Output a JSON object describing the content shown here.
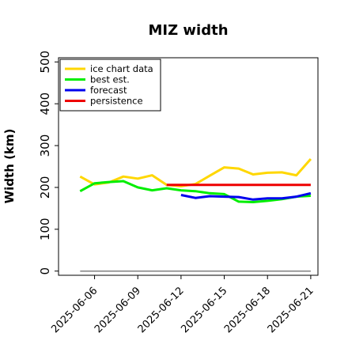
{
  "chart_data": {
    "type": "line",
    "title": "MIZ width",
    "xlabel": "",
    "ylabel": "Width (km)",
    "xlim": [
      "2025-06-03T12:00",
      "2025-06-21T12:00"
    ],
    "ylim": [
      -10,
      510
    ],
    "yticks": [
      0,
      100,
      200,
      300,
      400,
      500
    ],
    "xticks": [
      "2025-06-06",
      "2025-06-09",
      "2025-06-12",
      "2025-06-15",
      "2025-06-18",
      "2025-06-21"
    ],
    "highlight_tick": "2025-06-12",
    "highlight_color": "#228b22",
    "legend_position": "upper left",
    "series": [
      {
        "name": "ice chart data",
        "color": "#ffd700",
        "x": [
          "2025-06-05",
          "2025-06-06",
          "2025-06-07",
          "2025-06-08",
          "2025-06-09",
          "2025-06-10",
          "2025-06-11",
          "2025-06-12",
          "2025-06-13",
          "2025-06-14",
          "2025-06-15",
          "2025-06-16",
          "2025-06-17",
          "2025-06-18",
          "2025-06-19",
          "2025-06-20",
          "2025-06-21"
        ],
        "y": [
          226,
          207,
          212,
          226,
          221,
          229,
          206,
          203,
          208,
          228,
          248,
          245,
          231,
          235,
          236,
          229,
          268
        ]
      },
      {
        "name": "best est.",
        "color": "#00ee00",
        "x": [
          "2025-06-05",
          "2025-06-06",
          "2025-06-07",
          "2025-06-08",
          "2025-06-09",
          "2025-06-10",
          "2025-06-11",
          "2025-06-12",
          "2025-06-13",
          "2025-06-14",
          "2025-06-15",
          "2025-06-16",
          "2025-06-17",
          "2025-06-18",
          "2025-06-19",
          "2025-06-20",
          "2025-06-21"
        ],
        "y": [
          191,
          210,
          213,
          215,
          200,
          193,
          198,
          193,
          191,
          186,
          184,
          166,
          165,
          168,
          172,
          178,
          180
        ]
      },
      {
        "name": "forecast",
        "color": "#0000ee",
        "x": [
          "2025-06-12",
          "2025-06-13",
          "2025-06-14",
          "2025-06-15",
          "2025-06-16",
          "2025-06-17",
          "2025-06-18",
          "2025-06-19",
          "2025-06-20",
          "2025-06-21"
        ],
        "y": [
          182,
          175,
          179,
          178,
          177,
          171,
          174,
          174,
          178,
          186
        ]
      },
      {
        "name": "persistence",
        "color": "#ee0000",
        "x": [
          "2025-06-11",
          "2025-06-21"
        ],
        "y": [
          206,
          206
        ]
      }
    ],
    "reference_line": {
      "color": "#808080",
      "x": [
        "2025-06-05",
        "2025-06-21"
      ],
      "y": [
        0,
        0
      ]
    }
  }
}
